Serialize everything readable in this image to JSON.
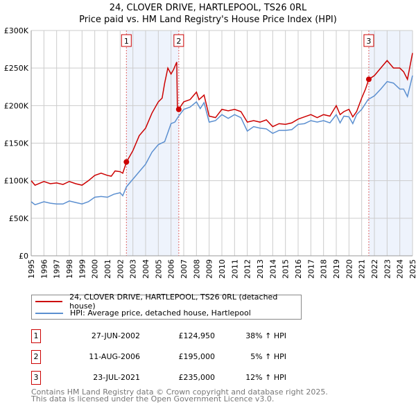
{
  "title": "24, CLOVER DRIVE, HARTLEPOOL, TS26 0RL",
  "subtitle": "Price paid vs. HM Land Registry's House Price Index (HPI)",
  "chart_data": {
    "type": "line",
    "xlim": [
      1995,
      2025
    ],
    "ylim": [
      0,
      300000
    ],
    "x_ticks": [
      "1995",
      "1996",
      "1997",
      "1998",
      "1999",
      "2000",
      "2001",
      "2002",
      "2003",
      "2004",
      "2005",
      "2006",
      "2007",
      "2008",
      "2009",
      "2010",
      "2011",
      "2012",
      "2013",
      "2014",
      "2015",
      "2016",
      "2017",
      "2018",
      "2019",
      "2020",
      "2021",
      "2022",
      "2023",
      "2024",
      "2025"
    ],
    "y_ticks": [
      {
        "v": 0,
        "l": "£0"
      },
      {
        "v": 50000,
        "l": "£50K"
      },
      {
        "v": 100000,
        "l": "£100K"
      },
      {
        "v": 150000,
        "l": "£150K"
      },
      {
        "v": 200000,
        "l": "£200K"
      },
      {
        "v": 250000,
        "l": "£250K"
      },
      {
        "v": 300000,
        "l": "£300K"
      }
    ],
    "grid": true,
    "series": [
      {
        "name": "24, CLOVER DRIVE, HARTLEPOOL, TS26 0RL (detached house)",
        "color": "#cc0000",
        "x": [
          1995,
          1995.3,
          1996,
          1996.5,
          1997,
          1997.5,
          1998,
          1998.5,
          1999,
          1999.5,
          2000,
          2000.5,
          2001,
          2001.3,
          2001.6,
          2002,
          2002.2,
          2002.5,
          2003,
          2003.5,
          2004,
          2004.5,
          2005,
          2005.3,
          2005.5,
          2005.75,
          2006,
          2006.2,
          2006.45,
          2006.5,
          2006.6,
          2007,
          2007.5,
          2008,
          2008.2,
          2008.6,
          2009,
          2009.5,
          2010,
          2010.5,
          2011,
          2011.5,
          2012,
          2012.5,
          2013,
          2013.5,
          2014,
          2014.5,
          2015,
          2015.5,
          2016,
          2016.5,
          2017,
          2017.5,
          2018,
          2018.5,
          2019,
          2019.3,
          2019.6,
          2020,
          2020.3,
          2020.6,
          2021,
          2021.3,
          2021.56,
          2022,
          2022.5,
          2023,
          2023.5,
          2024,
          2024.3,
          2024.6,
          2025
        ],
        "y": [
          100000,
          94000,
          99000,
          96000,
          97000,
          95000,
          99000,
          96000,
          94000,
          100000,
          107000,
          110000,
          107000,
          106000,
          113000,
          112000,
          110000,
          125000,
          140000,
          160000,
          170000,
          190000,
          205000,
          210000,
          230000,
          250000,
          242000,
          248000,
          258000,
          198000,
          195000,
          205000,
          208000,
          218000,
          208000,
          214000,
          186000,
          184000,
          195000,
          193000,
          195000,
          192000,
          178000,
          180000,
          178000,
          181000,
          172000,
          176000,
          175000,
          177000,
          182000,
          185000,
          188000,
          184000,
          188000,
          186000,
          200000,
          188000,
          192000,
          195000,
          185000,
          192000,
          210000,
          222000,
          235000,
          240000,
          250000,
          260000,
          250000,
          250000,
          245000,
          235000,
          270000
        ]
      },
      {
        "name": "HPI: Average price, detached house, Hartlepool",
        "color": "#5b8fd0",
        "x": [
          1995,
          1995.3,
          1996,
          1996.5,
          1997,
          1997.5,
          1998,
          1998.5,
          1999,
          1999.5,
          2000,
          2000.5,
          2001,
          2001.5,
          2002,
          2002.2,
          2002.5,
          2003,
          2003.5,
          2004,
          2004.5,
          2005,
          2005.5,
          2006,
          2006.3,
          2006.6,
          2007,
          2007.5,
          2008,
          2008.3,
          2008.6,
          2009,
          2009.5,
          2010,
          2010.5,
          2011,
          2011.5,
          2012,
          2012.5,
          2013,
          2013.5,
          2014,
          2014.5,
          2015,
          2015.5,
          2016,
          2016.5,
          2017,
          2017.5,
          2018,
          2018.5,
          2019,
          2019.3,
          2019.6,
          2020,
          2020.3,
          2020.6,
          2021,
          2021.5,
          2022,
          2022.5,
          2023,
          2023.5,
          2024,
          2024.3,
          2024.6,
          2025
        ],
        "y": [
          72000,
          68000,
          72000,
          70000,
          69000,
          69000,
          73000,
          71000,
          69000,
          72000,
          78000,
          79000,
          78000,
          82000,
          84000,
          80000,
          92000,
          102000,
          112000,
          122000,
          138000,
          148000,
          152000,
          176000,
          178000,
          186000,
          195000,
          198000,
          205000,
          196000,
          204000,
          178000,
          180000,
          188000,
          183000,
          188000,
          184000,
          166000,
          172000,
          170000,
          169000,
          163000,
          167000,
          167000,
          168000,
          175000,
          176000,
          180000,
          178000,
          180000,
          177000,
          188000,
          177000,
          186000,
          185000,
          176000,
          188000,
          195000,
          208000,
          213000,
          222000,
          232000,
          230000,
          222000,
          222000,
          212000,
          240000
        ]
      }
    ],
    "sales": [
      {
        "label": "1",
        "x": 2002.49,
        "y": 124950
      },
      {
        "label": "2",
        "x": 2006.61,
        "y": 195000
      },
      {
        "label": "3",
        "x": 2021.56,
        "y": 235000
      }
    ],
    "shaded": [
      [
        2002.49,
        2006.61
      ],
      [
        2021.56,
        2025
      ]
    ]
  },
  "legend": {
    "property": "24, CLOVER DRIVE, HARTLEPOOL, TS26 0RL (detached house)",
    "hpi": "HPI: Average price, detached house, Hartlepool"
  },
  "transactions": [
    {
      "num": "1",
      "date": "27-JUN-2002",
      "price": "£124,950",
      "hpi": "38% ↑ HPI"
    },
    {
      "num": "2",
      "date": "11-AUG-2006",
      "price": "£195,000",
      "hpi": "5% ↑ HPI"
    },
    {
      "num": "3",
      "date": "23-JUL-2021",
      "price": "£235,000",
      "hpi": "12% ↑ HPI"
    }
  ],
  "footer": [
    "Contains HM Land Registry data © Crown copyright and database right 2025.",
    "This data is licensed under the Open Government Licence v3.0."
  ]
}
